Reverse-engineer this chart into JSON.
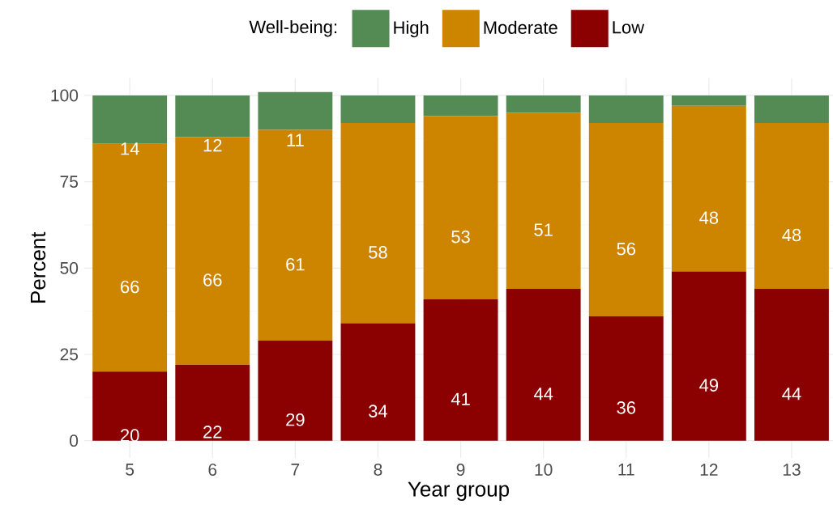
{
  "chart_data": {
    "type": "bar",
    "stacked": true,
    "xlabel": "Year group",
    "ylabel": "Percent",
    "legend_title": "Well-being:",
    "legend": "top",
    "grid": true,
    "categories": [
      "5",
      "6",
      "7",
      "8",
      "9",
      "10",
      "11",
      "12",
      "13"
    ],
    "ylim": [
      -5,
      105
    ],
    "yticks": [
      0,
      25,
      50,
      75,
      100
    ],
    "series": [
      {
        "name": "Low",
        "color": "#8b0000",
        "values": [
          20,
          22,
          29,
          34,
          41,
          44,
          36,
          49,
          44
        ],
        "value_labels": [
          "20",
          "22",
          "29",
          "34",
          "41",
          "44",
          "36",
          "49",
          "44"
        ]
      },
      {
        "name": "Moderate",
        "color": "#cd8500",
        "values": [
          66,
          66,
          61,
          58,
          53,
          51,
          56,
          48,
          48
        ],
        "value_labels": [
          "66",
          "66",
          "61",
          "58",
          "53",
          "51",
          "56",
          "48",
          "48"
        ]
      },
      {
        "name": "High",
        "color": "#548b54",
        "values": [
          14,
          12,
          11,
          8,
          6,
          5,
          8,
          3,
          8
        ],
        "value_labels": [
          "14",
          "12",
          "11",
          null,
          null,
          null,
          null,
          null,
          null
        ]
      }
    ]
  }
}
